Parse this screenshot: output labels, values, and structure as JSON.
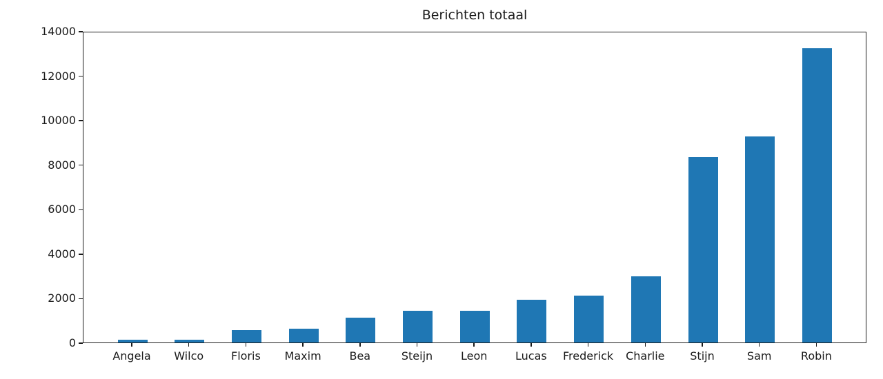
{
  "chart_data": {
    "type": "bar",
    "title": "Berichten totaal",
    "categories": [
      "Angela",
      "Wilco",
      "Floris",
      "Maxim",
      "Bea",
      "Steijn",
      "Leon",
      "Lucas",
      "Frederick",
      "Charlie",
      "Stijn",
      "Sam",
      "Robin"
    ],
    "values": [
      130,
      130,
      550,
      620,
      1120,
      1430,
      1440,
      1940,
      2130,
      3000,
      8400,
      9310,
      13320
    ],
    "xlabel": "",
    "ylabel": "",
    "ylim": [
      0,
      14000
    ],
    "yticks": [
      0,
      2000,
      4000,
      6000,
      8000,
      10000,
      12000,
      14000
    ],
    "grid": false,
    "legend_position": "none",
    "bar_color": "#1f77b4",
    "axis_color": "#1a1a1a"
  }
}
